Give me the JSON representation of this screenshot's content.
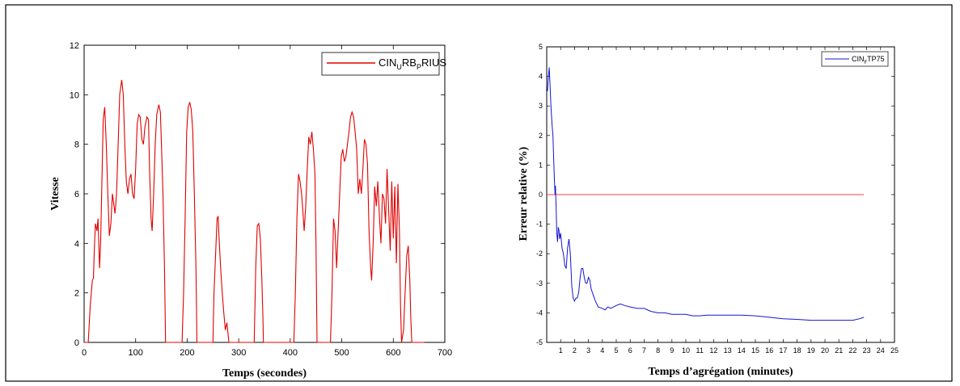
{
  "chart_data": [
    {
      "type": "line",
      "xlabel": "Temps (secondes)",
      "ylabel": "Vitesse",
      "xlim": [
        0,
        700
      ],
      "ylim": [
        0,
        12
      ],
      "xticks": [
        0,
        100,
        200,
        300,
        400,
        500,
        600,
        700
      ],
      "yticks": [
        0,
        2,
        4,
        6,
        8,
        10,
        12
      ],
      "grid": false,
      "legend_position": "top-right",
      "legend": {
        "main": "CIN",
        "sub1": "U",
        "mid": "RB",
        "sub2": "P",
        "tail": "RIUS"
      },
      "series": [
        {
          "name": "CIN_URB_PRIUS",
          "color": "#e00000",
          "points": [
            [
              0,
              0
            ],
            [
              8,
              0
            ],
            [
              12,
              1.5
            ],
            [
              16,
              2.5
            ],
            [
              18,
              2.6
            ],
            [
              20,
              3.8
            ],
            [
              22,
              4.8
            ],
            [
              25,
              4.5
            ],
            [
              27,
              5
            ],
            [
              30,
              3
            ],
            [
              32,
              4
            ],
            [
              34,
              6
            ],
            [
              37,
              9
            ],
            [
              40,
              9.5
            ],
            [
              43,
              8
            ],
            [
              46,
              6
            ],
            [
              49,
              4.3
            ],
            [
              52,
              4.8
            ],
            [
              55,
              6
            ],
            [
              58,
              5.5
            ],
            [
              60,
              5.2
            ],
            [
              63,
              6
            ],
            [
              66,
              8
            ],
            [
              69,
              10
            ],
            [
              73,
              10.6
            ],
            [
              76,
              10
            ],
            [
              79,
              8
            ],
            [
              82,
              6.5
            ],
            [
              85,
              6
            ],
            [
              88,
              6.6
            ],
            [
              91,
              6.8
            ],
            [
              94,
              6
            ],
            [
              97,
              5.8
            ],
            [
              100,
              7
            ],
            [
              103,
              8.8
            ],
            [
              106,
              9.2
            ],
            [
              109,
              9.1
            ],
            [
              112,
              8.2
            ],
            [
              115,
              8
            ],
            [
              118,
              8.7
            ],
            [
              122,
              9.1
            ],
            [
              125,
              9
            ],
            [
              127,
              7
            ],
            [
              130,
              5
            ],
            [
              132,
              4.5
            ],
            [
              135,
              6
            ],
            [
              138,
              8
            ],
            [
              141,
              9.2
            ],
            [
              145,
              9.6
            ],
            [
              148,
              9.3
            ],
            [
              150,
              8
            ],
            [
              153,
              6
            ],
            [
              156,
              3
            ],
            [
              158,
              0
            ],
            [
              190,
              0
            ],
            [
              193,
              2
            ],
            [
              196,
              5
            ],
            [
              199,
              8.5
            ],
            [
              202,
              9.5
            ],
            [
              205,
              9.7
            ],
            [
              208,
              9.4
            ],
            [
              211,
              8.5
            ],
            [
              214,
              6
            ],
            [
              217,
              3
            ],
            [
              219,
              0
            ],
            [
              250,
              0
            ],
            [
              252,
              2
            ],
            [
              255,
              3.5
            ],
            [
              258,
              5
            ],
            [
              260,
              5.1
            ],
            [
              262,
              4.2
            ],
            [
              265,
              3
            ],
            [
              268,
              2
            ],
            [
              271,
              1.2
            ],
            [
              274,
              0.5
            ],
            [
              277,
              0.8
            ],
            [
              279,
              0.4
            ],
            [
              281,
              0
            ],
            [
              330,
              0
            ],
            [
              333,
              3
            ],
            [
              336,
              4.7
            ],
            [
              339,
              4.8
            ],
            [
              342,
              4.2
            ],
            [
              345,
              2.5
            ],
            [
              347,
              1
            ],
            [
              348,
              0
            ],
            [
              407,
              0
            ],
            [
              410,
              2
            ],
            [
              413,
              5
            ],
            [
              416,
              6.8
            ],
            [
              419,
              6.5
            ],
            [
              422,
              6
            ],
            [
              424,
              5.5
            ],
            [
              427,
              4.5
            ],
            [
              430,
              5.5
            ],
            [
              433,
              7
            ],
            [
              436,
              8.3
            ],
            [
              439,
              8
            ],
            [
              442,
              8.5
            ],
            [
              445,
              7.8
            ],
            [
              448,
              6.8
            ],
            [
              450,
              4
            ],
            [
              452,
              0
            ],
            [
              478,
              0
            ],
            [
              481,
              2
            ],
            [
              484,
              5
            ],
            [
              487,
              4.5
            ],
            [
              490,
              3
            ],
            [
              493,
              4.5
            ],
            [
              496,
              6
            ],
            [
              499,
              7.5
            ],
            [
              502,
              7.8
            ],
            [
              505,
              7.3
            ],
            [
              508,
              7.5
            ],
            [
              511,
              8
            ],
            [
              514,
              8.5
            ],
            [
              517,
              9.1
            ],
            [
              520,
              9.3
            ],
            [
              523,
              9.1
            ],
            [
              526,
              8.5
            ],
            [
              529,
              7.8
            ],
            [
              532,
              6
            ],
            [
              535,
              6.6
            ],
            [
              538,
              6
            ],
            [
              541,
              7
            ],
            [
              544,
              8.2
            ],
            [
              547,
              8
            ],
            [
              550,
              7.2
            ],
            [
              553,
              4.5
            ],
            [
              556,
              3
            ],
            [
              558,
              2.5
            ],
            [
              561,
              4
            ],
            [
              564,
              6.3
            ],
            [
              567,
              5.5
            ],
            [
              570,
              6.5
            ],
            [
              573,
              5.1
            ],
            [
              576,
              4
            ],
            [
              579,
              6
            ],
            [
              582,
              5.8
            ],
            [
              585,
              4.8
            ],
            [
              588,
              7
            ],
            [
              591,
              5.3
            ],
            [
              594,
              3.7
            ],
            [
              597,
              6.5
            ],
            [
              600,
              4.2
            ],
            [
              603,
              6.3
            ],
            [
              606,
              3.2
            ],
            [
              609,
              6.4
            ],
            [
              612,
              4.5
            ],
            [
              614,
              1.5
            ],
            [
              616,
              0
            ],
            [
              620,
              0.5
            ],
            [
              623,
              2
            ],
            [
              626,
              3.5
            ],
            [
              629,
              3.9
            ],
            [
              632,
              2.5
            ],
            [
              634,
              1
            ],
            [
              636,
              0
            ],
            [
              660,
              0
            ]
          ]
        }
      ]
    },
    {
      "type": "line",
      "xlabel": "Temps d’agrégation (minutes)",
      "ylabel": "Erreur relative (%)",
      "xlim": [
        0,
        25
      ],
      "ylim": [
        -5,
        5
      ],
      "xticks": [
        1,
        2,
        3,
        4,
        5,
        6,
        7,
        8,
        9,
        10,
        11,
        12,
        13,
        14,
        15,
        16,
        17,
        18,
        19,
        20,
        21,
        22,
        23,
        24,
        25
      ],
      "yticks": [
        5,
        4,
        3,
        2,
        1,
        0,
        -1,
        -2,
        -3,
        -4,
        -5
      ],
      "grid": false,
      "legend_position": "top-right",
      "legend": {
        "main": "CIN",
        "sub1": "F",
        "tail": "TP75"
      },
      "series": [
        {
          "name": "CIN_FTP75",
          "color": "#1515d5",
          "points": [
            [
              0.05,
              3.5
            ],
            [
              0.12,
              4
            ],
            [
              0.18,
              4.3
            ],
            [
              0.25,
              3.6
            ],
            [
              0.3,
              3
            ],
            [
              0.38,
              2.4
            ],
            [
              0.45,
              2
            ],
            [
              0.5,
              1.2
            ],
            [
              0.55,
              0.5
            ],
            [
              0.6,
              0
            ],
            [
              0.63,
              0.3
            ],
            [
              0.68,
              -0.5
            ],
            [
              0.72,
              -1.3
            ],
            [
              0.78,
              -1.6
            ],
            [
              0.83,
              -1.1
            ],
            [
              0.88,
              -1.2
            ],
            [
              0.93,
              -1.5
            ],
            [
              1.0,
              -1.3
            ],
            [
              1.1,
              -1.8
            ],
            [
              1.2,
              -2
            ],
            [
              1.3,
              -2.4
            ],
            [
              1.4,
              -2.5
            ],
            [
              1.5,
              -1.8
            ],
            [
              1.6,
              -1.5
            ],
            [
              1.7,
              -2
            ],
            [
              1.8,
              -3.1
            ],
            [
              1.9,
              -3.5
            ],
            [
              2.0,
              -3.6
            ],
            [
              2.1,
              -3.5
            ],
            [
              2.2,
              -3.5
            ],
            [
              2.3,
              -3.3
            ],
            [
              2.4,
              -2.8
            ],
            [
              2.5,
              -2.5
            ],
            [
              2.6,
              -2.5
            ],
            [
              2.7,
              -2.8
            ],
            [
              2.8,
              -3
            ],
            [
              2.9,
              -3
            ],
            [
              3.0,
              -2.8
            ],
            [
              3.1,
              -2.9
            ],
            [
              3.2,
              -3.2
            ],
            [
              3.35,
              -3.4
            ],
            [
              3.5,
              -3.6
            ],
            [
              3.7,
              -3.8
            ],
            [
              4.0,
              -3.85
            ],
            [
              4.2,
              -3.9
            ],
            [
              4.4,
              -3.8
            ],
            [
              4.6,
              -3.85
            ],
            [
              4.8,
              -3.8
            ],
            [
              5.0,
              -3.75
            ],
            [
              5.3,
              -3.7
            ],
            [
              5.6,
              -3.75
            ],
            [
              6.0,
              -3.8
            ],
            [
              6.5,
              -3.85
            ],
            [
              7.0,
              -3.85
            ],
            [
              7.5,
              -3.95
            ],
            [
              8.0,
              -4
            ],
            [
              8.5,
              -4
            ],
            [
              9.0,
              -4.05
            ],
            [
              9.5,
              -4.05
            ],
            [
              10.0,
              -4.05
            ],
            [
              10.5,
              -4.1
            ],
            [
              11.0,
              -4.1
            ],
            [
              11.5,
              -4.08
            ],
            [
              12.0,
              -4.08
            ],
            [
              13.0,
              -4.08
            ],
            [
              14.0,
              -4.08
            ],
            [
              15.0,
              -4.1
            ],
            [
              16.0,
              -4.15
            ],
            [
              17.0,
              -4.2
            ],
            [
              18.0,
              -4.22
            ],
            [
              19.0,
              -4.25
            ],
            [
              20.0,
              -4.25
            ],
            [
              21.0,
              -4.25
            ],
            [
              22.0,
              -4.25
            ],
            [
              22.5,
              -4.2
            ],
            [
              22.8,
              -4.15
            ]
          ]
        },
        {
          "name": "",
          "color": "#ff4040",
          "points": [
            [
              0,
              0
            ],
            [
              22.8,
              0
            ]
          ]
        }
      ]
    }
  ]
}
